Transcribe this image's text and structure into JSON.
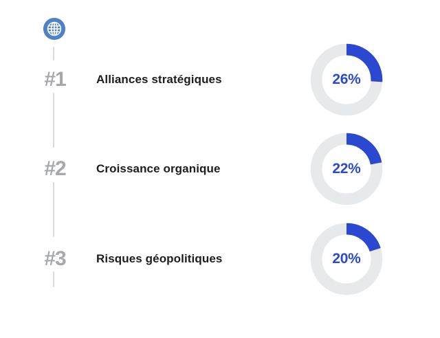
{
  "page": {
    "background": "#ffffff"
  },
  "timeline": {
    "icon": "globe-icon"
  },
  "rows": [
    {
      "rank": "#1",
      "label": "Alliances stratégiques",
      "value": 26,
      "pct_label": "26%"
    },
    {
      "rank": "#2",
      "label": "Croissance organique",
      "value": 22,
      "pct_label": "22%"
    },
    {
      "rank": "#3",
      "label": "Risques géopolitiques",
      "value": 20,
      "pct_label": "20%"
    }
  ],
  "chart_data": {
    "type": "pie",
    "variant": "donut-per-row",
    "categories": [
      "Alliances stratégiques",
      "Croissance organique",
      "Risques géopolitiques"
    ],
    "values": [
      26,
      22,
      20
    ],
    "ranks": [
      "#1",
      "#2",
      "#3"
    ],
    "title": "",
    "value_format": "percent",
    "arc_start_angle_deg": 0,
    "arc_direction": "clockwise",
    "legend": "none",
    "grid": false
  },
  "colors": {
    "accent_blue": "#2a49d0",
    "donut_track": "#e8e9eb",
    "globe_blue": "#4e82c6",
    "rank_gray": "#a7a8ab",
    "label_dark": "#1d1d1f",
    "connector_gray": "#d9dadb"
  }
}
